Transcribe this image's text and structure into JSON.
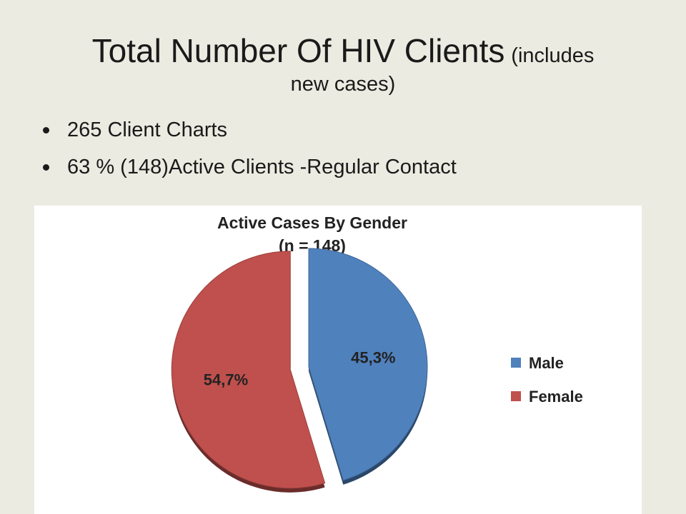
{
  "slide": {
    "title_main": "Total Number Of HIV Clients",
    "title_suffix": "(includes",
    "title_line2": "new cases)",
    "bullets": [
      "265  Client Charts",
      "63 % (148)Active Clients -Regular Contact"
    ]
  },
  "chart_data": {
    "type": "pie",
    "title": "Active  Cases By  Gender",
    "subtitle": "(n = 148)",
    "legend_position": "right",
    "slices": [
      {
        "name": "Male",
        "value": 45.3,
        "label": "45,3%",
        "color": "#4f81bd",
        "exploded": false
      },
      {
        "name": "Female",
        "value": 54.7,
        "label": "54,7%",
        "color": "#c0504d",
        "exploded": true
      }
    ]
  }
}
